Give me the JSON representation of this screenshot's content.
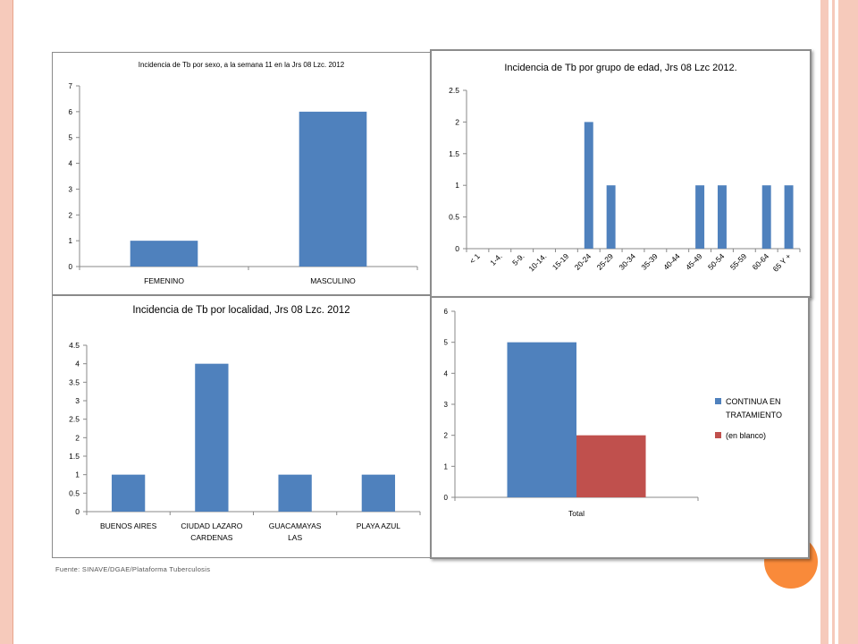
{
  "colors": {
    "bar_blue": "#4f81bd",
    "bar_red": "#c0504d",
    "slide_accent": "#f6cabb",
    "circle": "#f98a3a"
  },
  "source_note": "Fuente: SINAVE/DGAE/Plataforma Tuberculosis",
  "chart_data": [
    {
      "type": "bar",
      "title": "Incidencia de Tb por sexo, a la semana 11 en la Jrs 08 Lzc. 2012",
      "categories": [
        "FEMENINO",
        "MASCULINO"
      ],
      "values": [
        1,
        6
      ],
      "ylim": [
        0,
        7
      ],
      "yticks": [
        0,
        1,
        2,
        3,
        4,
        5,
        6,
        7
      ],
      "grid": false,
      "legend": "none"
    },
    {
      "type": "bar",
      "title": "Incidencia de Tb por grupo de edad, Jrs 08 Lzc 2012.",
      "categories": [
        "< 1",
        "1-4.",
        "5-9.",
        "10-14.",
        "15-19",
        "20-24",
        "25-29",
        "30-34",
        "35-39",
        "40-44",
        "45-49",
        "50-54",
        "55-59",
        "60-64",
        "65 Y +"
      ],
      "values": [
        0,
        0,
        0,
        0,
        0,
        2,
        1,
        0,
        0,
        0,
        1,
        1,
        0,
        1,
        1
      ],
      "ylim": [
        0,
        2.5
      ],
      "yticks": [
        "0",
        "0.5",
        "1",
        "1.5",
        "2",
        "2.5"
      ],
      "grid": false,
      "legend": "none"
    },
    {
      "type": "bar",
      "title": "Incidencia de Tb por localidad, Jrs 08 Lzc. 2012",
      "categories": [
        [
          "BUENOS AIRES"
        ],
        [
          "CIUDAD LAZARO",
          "CARDENAS"
        ],
        [
          "GUACAMAYAS",
          "LAS"
        ],
        [
          "PLAYA AZUL"
        ]
      ],
      "values": [
        1,
        4,
        1,
        1
      ],
      "ylim": [
        0,
        4.5
      ],
      "yticks": [
        "0",
        "0.5",
        "1",
        "1.5",
        "2",
        "2.5",
        "3",
        "3.5",
        "4",
        "4.5"
      ],
      "grid": false,
      "legend": "none"
    },
    {
      "type": "bar",
      "title": "",
      "categories": [
        "Total"
      ],
      "series": [
        {
          "name": "CONTINUA EN TRATAMIENTO",
          "legend_lines": [
            "CONTINUA  EN",
            "TRATAMIENTO"
          ],
          "values": [
            5
          ]
        },
        {
          "name": "(en blanco)",
          "legend_lines": [
            "(en blanco)"
          ],
          "values": [
            2
          ]
        }
      ],
      "ylim": [
        0,
        6
      ],
      "yticks": [
        0,
        1,
        2,
        3,
        4,
        5,
        6
      ],
      "grid": false,
      "legend": "right"
    }
  ]
}
